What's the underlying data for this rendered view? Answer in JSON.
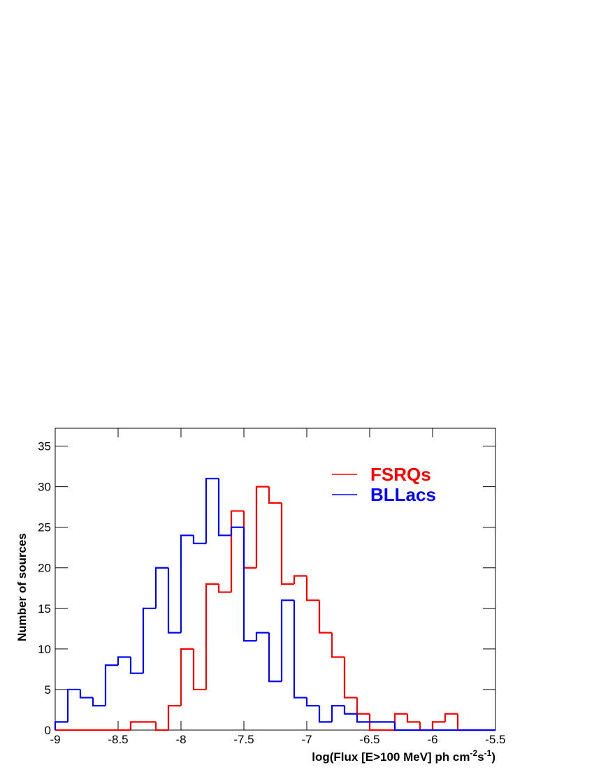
{
  "chart_data": {
    "type": "histogram",
    "x_label": {
      "main": "log(Flux [E>100 MeV] ph cm",
      "sup1": "-2",
      "mid": "s",
      "sup2": "-1",
      "end": ")"
    },
    "y_label": "Number of sources",
    "bins": [
      -9,
      -8.9,
      -8.8,
      -8.7,
      -8.6,
      -8.5,
      -8.4,
      -8.3,
      -8.2,
      -8.1,
      -8,
      -7.9,
      -7.8,
      -7.7,
      -7.6,
      -7.5,
      -7.4,
      -7.3,
      -7.2,
      -7.1,
      -7,
      -6.9,
      -6.8,
      -6.7,
      -6.6,
      -6.5,
      -6.4,
      -6.3,
      -6.2,
      -6.1,
      -6,
      -5.9,
      -5.8,
      -5.7,
      -5.6,
      -5.5
    ],
    "series": [
      {
        "name": "FSRQs",
        "color": "#ff0000",
        "values": [
          0,
          0,
          0,
          0,
          0,
          0,
          1,
          1,
          0,
          3,
          10,
          5,
          18,
          17,
          27,
          20,
          30,
          28,
          18,
          19,
          16,
          12,
          9,
          4,
          2,
          0,
          0,
          2,
          1,
          0,
          1,
          2,
          0,
          0,
          0
        ]
      },
      {
        "name": "BLLacs",
        "color": "#0000ff",
        "values": [
          1,
          5,
          4,
          3,
          8,
          9,
          7,
          15,
          20,
          12,
          24,
          23,
          31,
          24,
          25,
          11,
          12,
          6,
          16,
          4,
          3,
          1,
          3,
          2,
          1,
          1,
          1,
          0,
          0,
          0,
          0,
          0,
          0,
          0,
          0
        ]
      }
    ],
    "xlim": [
      -9,
      -5.5
    ],
    "ylim": [
      0,
      37.2
    ],
    "xticks": [
      -9,
      -8.5,
      -8,
      -7.5,
      -7,
      -6.5,
      -6,
      -5.5
    ],
    "yticks": [
      0,
      5,
      10,
      15,
      20,
      25,
      30,
      35
    ],
    "legend": "upper right"
  }
}
